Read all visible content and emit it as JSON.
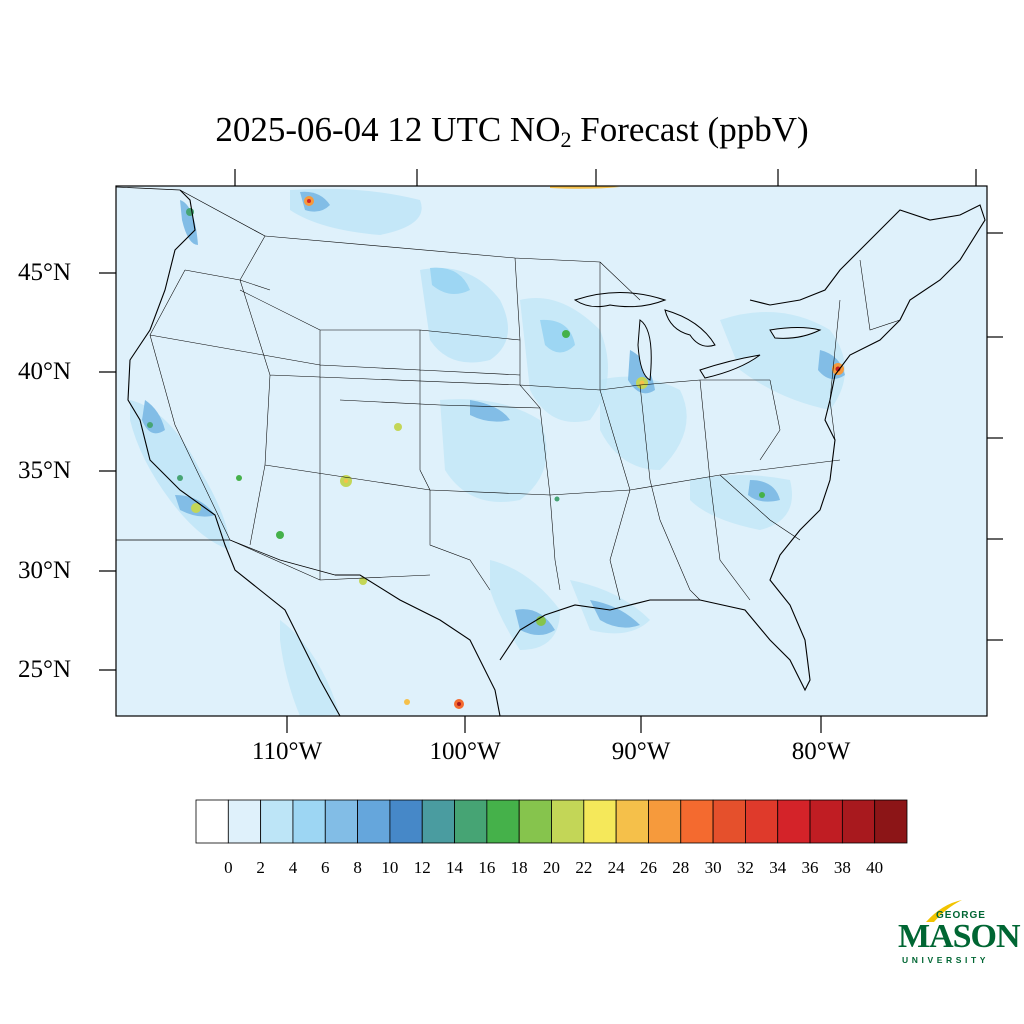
{
  "title": {
    "prefix": "2025-06-04 12 UTC NO",
    "subscript": "2",
    "suffix": " Forecast (ppbV)"
  },
  "map": {
    "lat_labels": [
      "45°N",
      "40°N",
      "35°N",
      "30°N",
      "25°N"
    ],
    "lon_labels": [
      "110°W",
      "100°W",
      "90°W",
      "80°W"
    ],
    "background_color": "#dff1fb"
  },
  "colorbar": {
    "labels": [
      "0",
      "2",
      "4",
      "6",
      "8",
      "10",
      "12",
      "14",
      "16",
      "18",
      "20",
      "22",
      "24",
      "26",
      "28",
      "30",
      "32",
      "34",
      "36",
      "38",
      "40"
    ],
    "colors": [
      "#ffffff",
      "#dff1fb",
      "#bde5f7",
      "#9dd6f3",
      "#82bde6",
      "#65a6dc",
      "#4688c8",
      "#4a9ca0",
      "#46a474",
      "#45b14a",
      "#86c44d",
      "#c3d657",
      "#f5e85a",
      "#f5c04a",
      "#f69a3c",
      "#f46a2f",
      "#e5502c",
      "#df3a2b",
      "#d42329",
      "#c01d23",
      "#a8191e",
      "#8c1517"
    ]
  },
  "logo": {
    "line1": "GEORGE",
    "line2": "MASON",
    "line3": "UNIVERSITY",
    "color": "#006633",
    "accent": "#f2c400"
  }
}
